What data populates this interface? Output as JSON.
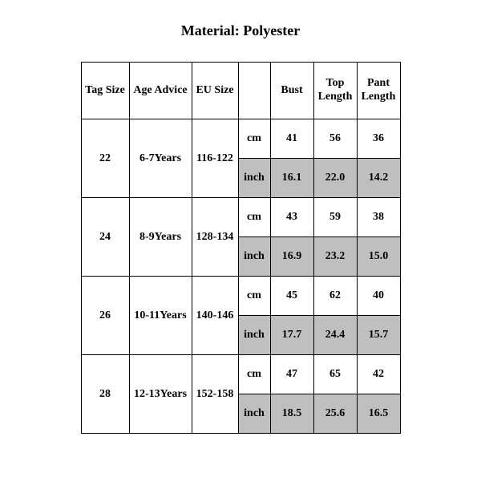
{
  "title": "Material: Polyester",
  "table": {
    "columns": {
      "tag": "Tag Size",
      "age": "Age Advice",
      "eu": "EU Size",
      "unit": "",
      "bust": "Bust",
      "top": "Top Length",
      "pant": "Pant Length"
    },
    "unit_labels": {
      "cm": "cm",
      "inch": "inch"
    },
    "shaded_bg": "#bfbfbf",
    "border_color": "#000000",
    "text_color": "#000000",
    "font_family": "Times New Roman",
    "header_fontsize": 14,
    "body_fontsize": 14,
    "rows": [
      {
        "tag": "22",
        "age": "6-7Years",
        "eu": "116-122",
        "cm": {
          "bust": "41",
          "top": "56",
          "pant": "36"
        },
        "inch": {
          "bust": "16.1",
          "top": "22.0",
          "pant": "14.2"
        }
      },
      {
        "tag": "24",
        "age": "8-9Years",
        "eu": "128-134",
        "cm": {
          "bust": "43",
          "top": "59",
          "pant": "38"
        },
        "inch": {
          "bust": "16.9",
          "top": "23.2",
          "pant": "15.0"
        }
      },
      {
        "tag": "26",
        "age": "10-11Years",
        "eu": "140-146",
        "cm": {
          "bust": "45",
          "top": "62",
          "pant": "40"
        },
        "inch": {
          "bust": "17.7",
          "top": "24.4",
          "pant": "15.7"
        }
      },
      {
        "tag": "28",
        "age": "12-13Years",
        "eu": "152-158",
        "cm": {
          "bust": "47",
          "top": "65",
          "pant": "42"
        },
        "inch": {
          "bust": "18.5",
          "top": "25.6",
          "pant": "16.5"
        }
      }
    ]
  }
}
